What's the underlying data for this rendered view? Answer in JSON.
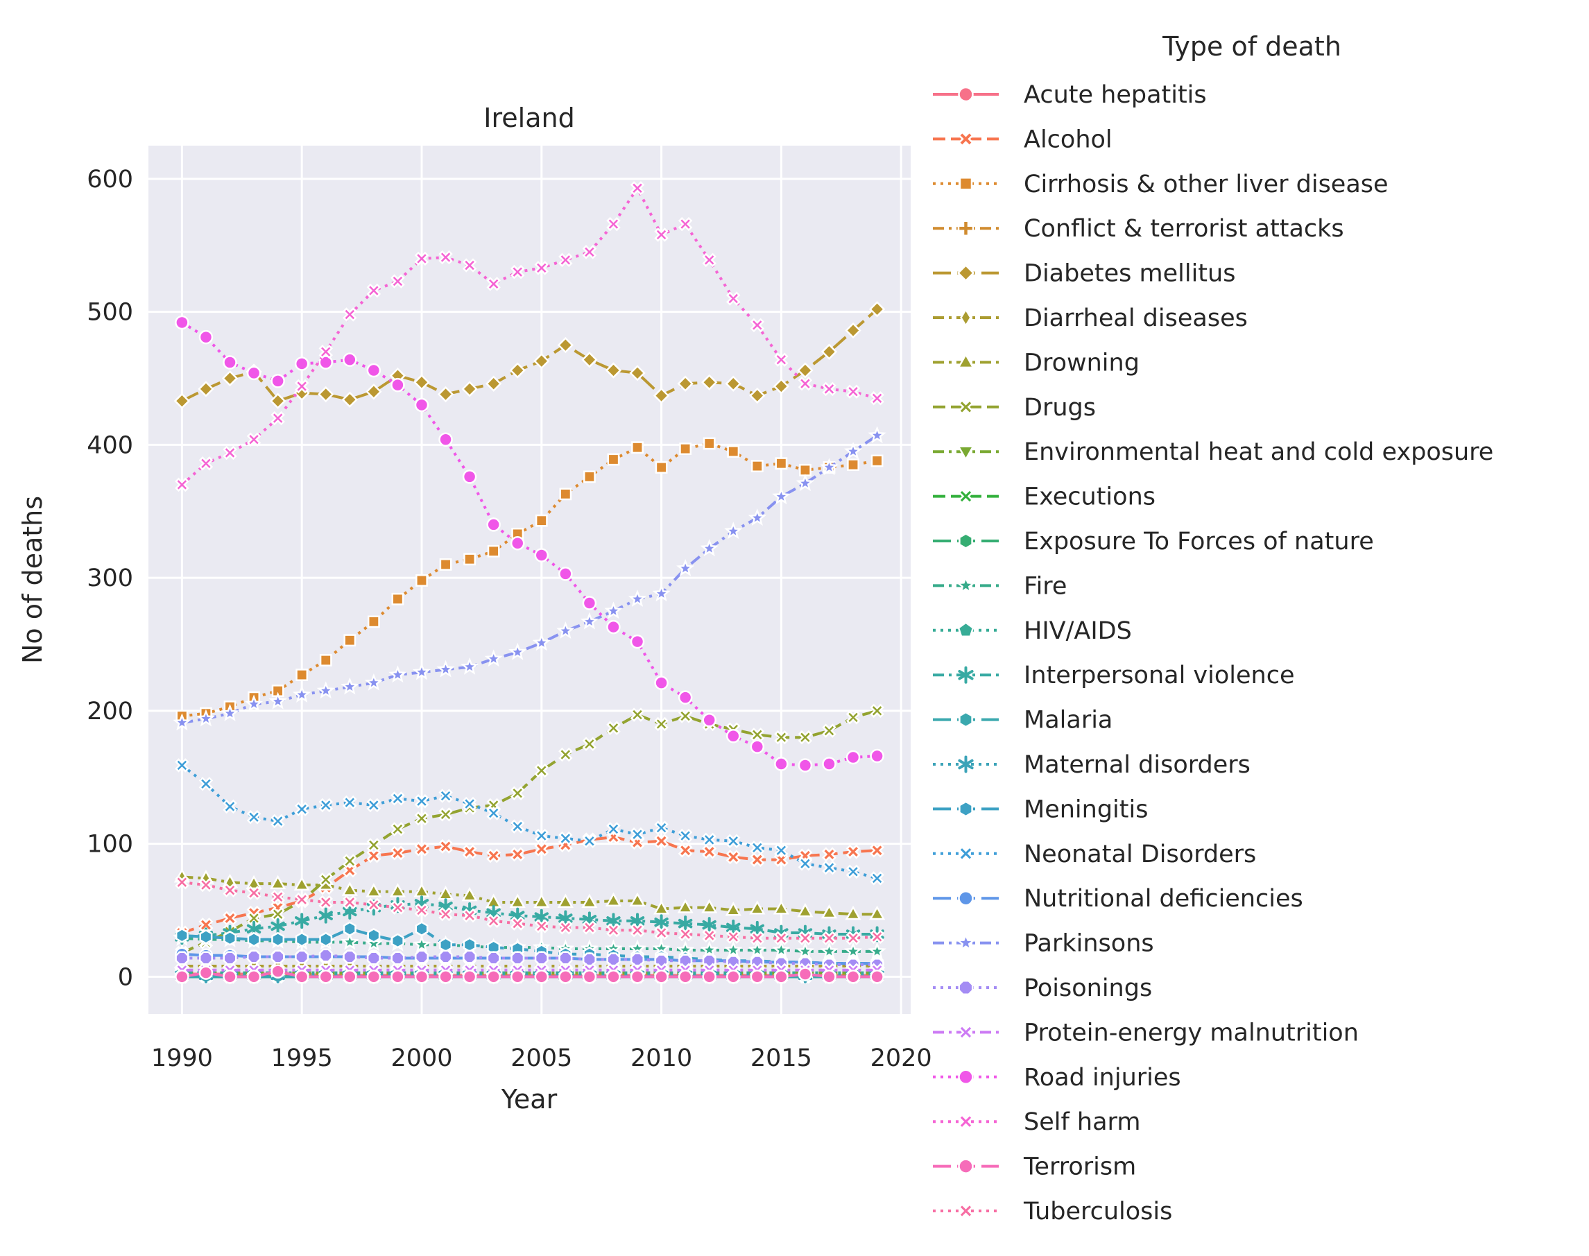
{
  "chart_data": {
    "type": "line",
    "title": "Ireland",
    "xlabel": "Year",
    "ylabel": "No of deaths",
    "xlim": [
      1988.6,
      2020.4
    ],
    "ylim": [
      -28,
      625
    ],
    "x_ticks": [
      1990,
      1995,
      2000,
      2005,
      2010,
      2015,
      2020
    ],
    "y_ticks": [
      0,
      100,
      200,
      300,
      400,
      500,
      600
    ],
    "grid": true,
    "legend_title": "Type of death",
    "legend_position": "right",
    "x": [
      1990,
      1991,
      1992,
      1993,
      1994,
      1995,
      1996,
      1997,
      1998,
      1999,
      2000,
      2001,
      2002,
      2003,
      2004,
      2005,
      2006,
      2007,
      2008,
      2009,
      2010,
      2011,
      2012,
      2013,
      2014,
      2015,
      2016,
      2017,
      2018,
      2019
    ],
    "series": [
      {
        "name": "Acute hepatitis",
        "color": "#f77189",
        "marker": "circle",
        "dash": "solid",
        "values": [
          2,
          2,
          2,
          2,
          2,
          2,
          1,
          1,
          1,
          1,
          1,
          1,
          1,
          1,
          1,
          1,
          1,
          1,
          1,
          1,
          1,
          1,
          1,
          1,
          1,
          1,
          1,
          1,
          1,
          1
        ]
      },
      {
        "name": "Alcohol",
        "color": "#f7754f",
        "marker": "x",
        "dash": "dashed",
        "values": [
          33,
          39,
          44,
          48,
          52,
          57,
          67,
          80,
          91,
          93,
          96,
          98,
          94,
          91,
          92,
          96,
          99,
          103,
          105,
          101,
          102,
          95,
          94,
          90,
          88,
          88,
          91,
          92,
          94,
          95
        ]
      },
      {
        "name": "Cirrhosis & other liver disease",
        "color": "#dd8a2f",
        "marker": "square",
        "dash": "dotted",
        "values": [
          196,
          198,
          203,
          210,
          215,
          227,
          238,
          253,
          267,
          284,
          298,
          310,
          314,
          320,
          333,
          343,
          363,
          376,
          389,
          398,
          383,
          397,
          401,
          395,
          384,
          386,
          381,
          383,
          385,
          388
        ]
      },
      {
        "name": "Conflict & terrorist attacks",
        "color": "#d08b2e",
        "marker": "plus",
        "dash": "dashdot",
        "values": [
          1,
          1,
          1,
          1,
          1,
          1,
          1,
          1,
          1,
          1,
          1,
          1,
          1,
          1,
          1,
          1,
          1,
          1,
          1,
          1,
          1,
          1,
          1,
          1,
          1,
          1,
          1,
          1,
          1,
          1
        ]
      },
      {
        "name": "Diabetes mellitus",
        "color": "#bb9832",
        "marker": "diamond",
        "dash": "longdash",
        "values": [
          433,
          442,
          450,
          455,
          433,
          439,
          438,
          434,
          440,
          452,
          447,
          438,
          442,
          446,
          456,
          463,
          475,
          464,
          456,
          454,
          437,
          446,
          447,
          446,
          437,
          444,
          456,
          470,
          486,
          502
        ]
      },
      {
        "name": "Diarrheal diseases",
        "color": "#ab9c31",
        "marker": "thin-diamond",
        "dash": "dashdot",
        "values": [
          8,
          8,
          8,
          8,
          8,
          8,
          8,
          8,
          8,
          8,
          8,
          8,
          8,
          8,
          8,
          8,
          8,
          8,
          8,
          8,
          8,
          8,
          8,
          8,
          8,
          8,
          8,
          8,
          8,
          8
        ]
      },
      {
        "name": "Drowning",
        "color": "#9fa130",
        "marker": "triangle-up",
        "dash": "dashdot",
        "values": [
          75,
          74,
          71,
          70,
          70,
          69,
          69,
          65,
          64,
          64,
          64,
          62,
          61,
          56,
          56,
          56,
          56,
          56,
          57,
          57,
          51,
          52,
          52,
          50,
          51,
          51,
          49,
          48,
          47,
          47
        ]
      },
      {
        "name": "Drugs",
        "color": "#93a330",
        "marker": "x-thick",
        "dash": "dashed",
        "values": [
          18,
          26,
          34,
          44,
          47,
          57,
          73,
          87,
          99,
          111,
          119,
          122,
          127,
          129,
          138,
          155,
          167,
          175,
          187,
          197,
          190,
          196,
          190,
          186,
          182,
          180,
          180,
          185,
          195,
          200
        ]
      },
      {
        "name": "Environmental heat and cold exposure",
        "color": "#7aa932",
        "marker": "triangle-down",
        "dash": "dashdot",
        "values": [
          3,
          3,
          3,
          3,
          3,
          3,
          3,
          3,
          3,
          3,
          3,
          3,
          3,
          3,
          3,
          3,
          3,
          3,
          3,
          3,
          3,
          3,
          3,
          3,
          3,
          3,
          3,
          3,
          3,
          3
        ]
      },
      {
        "name": "Executions",
        "color": "#33b03c",
        "marker": "x-thick",
        "dash": "dashed",
        "values": [
          0,
          0,
          0,
          0,
          0,
          0,
          0,
          0,
          0,
          0,
          0,
          0,
          0,
          0,
          0,
          0,
          0,
          0,
          0,
          0,
          0,
          0,
          0,
          0,
          0,
          0,
          0,
          0,
          0,
          0
        ]
      },
      {
        "name": "Exposure To Forces of nature",
        "color": "#35ad72",
        "marker": "hexagon",
        "dash": "longdash",
        "values": [
          0,
          0,
          0,
          0,
          0,
          0,
          0,
          0,
          0,
          0,
          0,
          0,
          0,
          0,
          0,
          0,
          0,
          0,
          0,
          0,
          0,
          0,
          0,
          0,
          0,
          0,
          0,
          0,
          0,
          0
        ]
      },
      {
        "name": "Fire",
        "color": "#37ab8a",
        "marker": "star",
        "dash": "dashdot",
        "values": [
          29,
          28,
          28,
          27,
          27,
          26,
          26,
          26,
          25,
          25,
          24,
          24,
          23,
          22,
          22,
          22,
          21,
          21,
          21,
          21,
          21,
          20,
          20,
          20,
          20,
          20,
          19,
          19,
          19,
          19
        ]
      },
      {
        "name": "HIV/AIDS",
        "color": "#37ac96",
        "marker": "pentagon",
        "dash": "dotted",
        "values": [
          3,
          3,
          3,
          3,
          3,
          3,
          3,
          3,
          3,
          3,
          3,
          3,
          3,
          3,
          3,
          3,
          3,
          3,
          3,
          3,
          3,
          3,
          3,
          3,
          3,
          3,
          3,
          3,
          3,
          3
        ]
      },
      {
        "name": "Interpersonal violence",
        "color": "#38aaa3",
        "marker": "asterisk",
        "dash": "dashdot",
        "values": [
          30,
          31,
          33,
          36,
          38,
          42,
          46,
          49,
          52,
          54,
          55,
          53,
          50,
          48,
          46,
          45,
          44,
          43,
          42,
          42,
          41,
          40,
          39,
          37,
          36,
          33,
          33,
          32,
          32,
          32
        ]
      },
      {
        "name": "Malaria",
        "color": "#3aa8ae",
        "marker": "hexagon",
        "dash": "longdash",
        "values": [
          0,
          0,
          0,
          0,
          0,
          0,
          0,
          0,
          0,
          0,
          0,
          0,
          0,
          0,
          0,
          0,
          0,
          0,
          0,
          0,
          0,
          0,
          0,
          0,
          0,
          0,
          0,
          0,
          0,
          0
        ]
      },
      {
        "name": "Maternal disorders",
        "color": "#3ba3b8",
        "marker": "asterisk",
        "dash": "dotted",
        "values": [
          1,
          1,
          1,
          1,
          1,
          1,
          1,
          1,
          1,
          1,
          1,
          1,
          1,
          1,
          1,
          1,
          1,
          1,
          1,
          1,
          1,
          1,
          1,
          1,
          1,
          1,
          1,
          1,
          1,
          1
        ]
      },
      {
        "name": "Meningitis",
        "color": "#3da1c4",
        "marker": "hexagon",
        "dash": "longdash",
        "values": [
          31,
          30,
          29,
          28,
          28,
          28,
          28,
          36,
          31,
          27,
          36,
          24,
          24,
          22,
          21,
          19,
          17,
          17,
          16,
          15,
          15,
          14,
          13,
          12,
          12,
          11,
          11,
          10,
          10,
          10
        ]
      },
      {
        "name": "Neonatal Disorders",
        "color": "#3e9ed8",
        "marker": "x-thick",
        "dash": "dotted",
        "values": [
          159,
          145,
          128,
          120,
          117,
          126,
          129,
          131,
          129,
          134,
          132,
          136,
          130,
          123,
          113,
          106,
          104,
          102,
          111,
          107,
          112,
          106,
          103,
          102,
          97,
          95,
          85,
          82,
          79,
          74
        ]
      },
      {
        "name": "Nutritional deficiencies",
        "color": "#5e96e8",
        "marker": "circle",
        "dash": "longdash",
        "values": [
          17,
          16,
          16,
          15,
          15,
          15,
          15,
          15,
          15,
          14,
          14,
          14,
          14,
          14,
          14,
          14,
          14,
          13,
          13,
          13,
          13,
          12,
          12,
          12,
          11,
          11,
          11,
          10,
          10,
          10
        ]
      },
      {
        "name": "Parkinsons",
        "color": "#8892f0",
        "marker": "star",
        "dash": "dashdot",
        "values": [
          191,
          194,
          198,
          205,
          207,
          212,
          215,
          218,
          221,
          227,
          229,
          231,
          233,
          239,
          244,
          251,
          260,
          267,
          275,
          284,
          288,
          307,
          322,
          335,
          345,
          361,
          371,
          383,
          395,
          407
        ]
      },
      {
        "name": "Poisonings",
        "color": "#a48cf4",
        "marker": "octagon",
        "dash": "dotted",
        "values": [
          14,
          14,
          14,
          15,
          15,
          15,
          16,
          15,
          14,
          14,
          15,
          15,
          15,
          14,
          14,
          14,
          14,
          13,
          13,
          13,
          12,
          12,
          12,
          11,
          11,
          10,
          10,
          9,
          9,
          9
        ]
      },
      {
        "name": "Protein-energy malnutrition",
        "color": "#cc7af4",
        "marker": "x-thick",
        "dash": "dashdot",
        "values": [
          5,
          5,
          5,
          5,
          5,
          5,
          5,
          5,
          5,
          5,
          5,
          5,
          5,
          5,
          5,
          5,
          5,
          5,
          5,
          5,
          5,
          5,
          5,
          5,
          5,
          5,
          5,
          5,
          5,
          5
        ]
      },
      {
        "name": "Road injuries",
        "color": "#f056e8",
        "marker": "circle",
        "dash": "dotted",
        "values": [
          492,
          481,
          462,
          454,
          448,
          461,
          462,
          464,
          456,
          445,
          430,
          404,
          376,
          340,
          326,
          317,
          303,
          281,
          263,
          252,
          221,
          210,
          193,
          181,
          173,
          160,
          159,
          160,
          165,
          166
        ]
      },
      {
        "name": "Self harm",
        "color": "#f564d4",
        "marker": "x-thick",
        "dash": "dotted",
        "values": [
          370,
          386,
          394,
          404,
          420,
          444,
          470,
          498,
          516,
          523,
          540,
          541,
          535,
          521,
          530,
          533,
          539,
          545,
          566,
          593,
          558,
          566,
          539,
          510,
          490,
          464,
          446,
          442,
          440,
          435
        ]
      },
      {
        "name": "Terrorism",
        "color": "#f66cb9",
        "marker": "circle",
        "dash": "longdash",
        "values": [
          0,
          3,
          0,
          0,
          4,
          0,
          0,
          0,
          0,
          0,
          0,
          0,
          0,
          0,
          0,
          0,
          0,
          0,
          0,
          0,
          0,
          0,
          0,
          0,
          0,
          0,
          2,
          0,
          0,
          0
        ]
      },
      {
        "name": "Tuberculosis",
        "color": "#f76ea3",
        "marker": "x-thick",
        "dash": "dotted",
        "values": [
          71,
          69,
          65,
          63,
          60,
          58,
          56,
          56,
          54,
          52,
          50,
          47,
          46,
          42,
          40,
          38,
          37,
          37,
          35,
          35,
          33,
          32,
          31,
          30,
          29,
          29,
          29,
          29,
          29,
          30
        ]
      }
    ]
  }
}
